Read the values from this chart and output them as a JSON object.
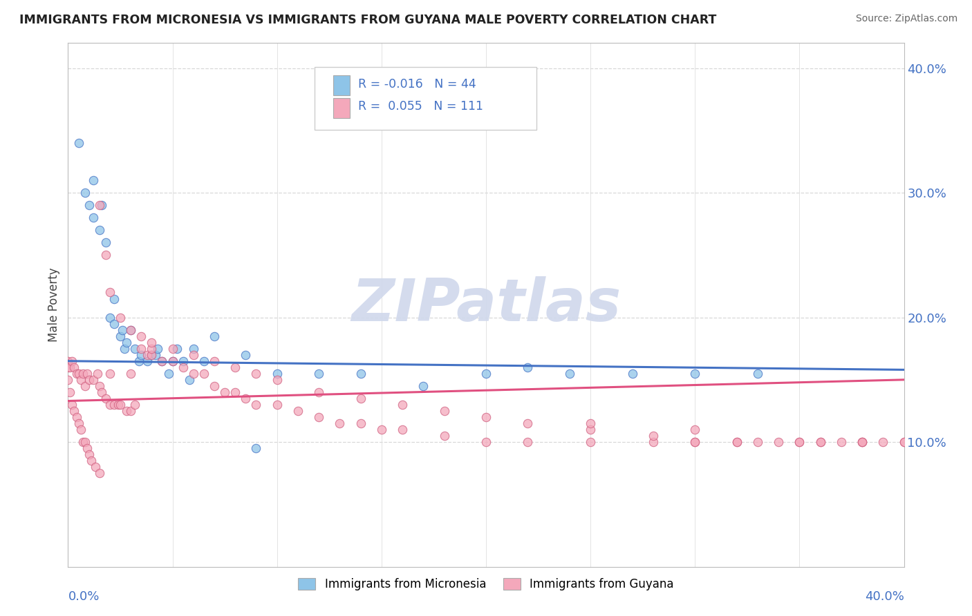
{
  "title": "IMMIGRANTS FROM MICRONESIA VS IMMIGRANTS FROM GUYANA MALE POVERTY CORRELATION CHART",
  "source": "Source: ZipAtlas.com",
  "ylabel": "Male Poverty",
  "xmin": 0.0,
  "xmax": 0.4,
  "ymin": 0.0,
  "ymax": 0.42,
  "blue_color": "#8ec4e8",
  "pink_color": "#f4a8bb",
  "blue_line_color": "#4472c4",
  "pink_line_color": "#e05080",
  "watermark_color": "#d0d8ec",
  "grid_color": "#d8d8d8",
  "right_tick_color": "#4472c4",
  "title_color": "#222222",
  "source_color": "#666666",
  "legend_text_color": "#4472c4",
  "blue_scatter_x": [
    0.005,
    0.008,
    0.01,
    0.012,
    0.012,
    0.015,
    0.016,
    0.018,
    0.02,
    0.022,
    0.022,
    0.025,
    0.026,
    0.027,
    0.028,
    0.03,
    0.032,
    0.034,
    0.035,
    0.038,
    0.04,
    0.042,
    0.043,
    0.045,
    0.048,
    0.05,
    0.052,
    0.055,
    0.058,
    0.06,
    0.065,
    0.07,
    0.085,
    0.09,
    0.1,
    0.12,
    0.14,
    0.17,
    0.2,
    0.22,
    0.24,
    0.27,
    0.3,
    0.33
  ],
  "blue_scatter_y": [
    0.34,
    0.3,
    0.29,
    0.31,
    0.28,
    0.27,
    0.29,
    0.26,
    0.2,
    0.195,
    0.215,
    0.185,
    0.19,
    0.175,
    0.18,
    0.19,
    0.175,
    0.165,
    0.17,
    0.165,
    0.17,
    0.17,
    0.175,
    0.165,
    0.155,
    0.165,
    0.175,
    0.165,
    0.15,
    0.175,
    0.165,
    0.185,
    0.17,
    0.095,
    0.155,
    0.155,
    0.155,
    0.145,
    0.155,
    0.16,
    0.155,
    0.155,
    0.155,
    0.155
  ],
  "pink_scatter_x": [
    0.0,
    0.0,
    0.0,
    0.001,
    0.001,
    0.002,
    0.002,
    0.003,
    0.003,
    0.004,
    0.004,
    0.005,
    0.005,
    0.006,
    0.006,
    0.007,
    0.007,
    0.008,
    0.008,
    0.009,
    0.009,
    0.01,
    0.01,
    0.011,
    0.012,
    0.013,
    0.014,
    0.015,
    0.015,
    0.016,
    0.018,
    0.02,
    0.02,
    0.022,
    0.024,
    0.025,
    0.028,
    0.03,
    0.03,
    0.032,
    0.035,
    0.038,
    0.04,
    0.04,
    0.045,
    0.05,
    0.055,
    0.06,
    0.065,
    0.07,
    0.075,
    0.08,
    0.085,
    0.09,
    0.1,
    0.11,
    0.12,
    0.13,
    0.14,
    0.15,
    0.16,
    0.18,
    0.2,
    0.22,
    0.25,
    0.28,
    0.3,
    0.32,
    0.33,
    0.35,
    0.36,
    0.37,
    0.38,
    0.39,
    0.4,
    0.015,
    0.018,
    0.02,
    0.025,
    0.03,
    0.035,
    0.04,
    0.05,
    0.06,
    0.07,
    0.08,
    0.09,
    0.1,
    0.12,
    0.14,
    0.16,
    0.18,
    0.2,
    0.22,
    0.25,
    0.28,
    0.3,
    0.32,
    0.34,
    0.36,
    0.38,
    0.4,
    0.25,
    0.3,
    0.35,
    0.38
  ],
  "pink_scatter_y": [
    0.15,
    0.16,
    0.165,
    0.14,
    0.16,
    0.13,
    0.165,
    0.125,
    0.16,
    0.12,
    0.155,
    0.115,
    0.155,
    0.11,
    0.15,
    0.1,
    0.155,
    0.1,
    0.145,
    0.095,
    0.155,
    0.09,
    0.15,
    0.085,
    0.15,
    0.08,
    0.155,
    0.075,
    0.145,
    0.14,
    0.135,
    0.13,
    0.155,
    0.13,
    0.13,
    0.13,
    0.125,
    0.155,
    0.125,
    0.13,
    0.175,
    0.17,
    0.17,
    0.175,
    0.165,
    0.165,
    0.16,
    0.155,
    0.155,
    0.145,
    0.14,
    0.14,
    0.135,
    0.13,
    0.13,
    0.125,
    0.12,
    0.115,
    0.115,
    0.11,
    0.11,
    0.105,
    0.1,
    0.1,
    0.1,
    0.1,
    0.1,
    0.1,
    0.1,
    0.1,
    0.1,
    0.1,
    0.1,
    0.1,
    0.1,
    0.29,
    0.25,
    0.22,
    0.2,
    0.19,
    0.185,
    0.18,
    0.175,
    0.17,
    0.165,
    0.16,
    0.155,
    0.15,
    0.14,
    0.135,
    0.13,
    0.125,
    0.12,
    0.115,
    0.11,
    0.105,
    0.1,
    0.1,
    0.1,
    0.1,
    0.1,
    0.1,
    0.115,
    0.11,
    0.1,
    0.1
  ],
  "blue_line_x0": 0.0,
  "blue_line_x1": 0.4,
  "blue_line_y0": 0.165,
  "blue_line_y1": 0.158,
  "pink_line_x0": 0.0,
  "pink_line_x1": 0.4,
  "pink_line_y0": 0.133,
  "pink_line_y1": 0.15
}
